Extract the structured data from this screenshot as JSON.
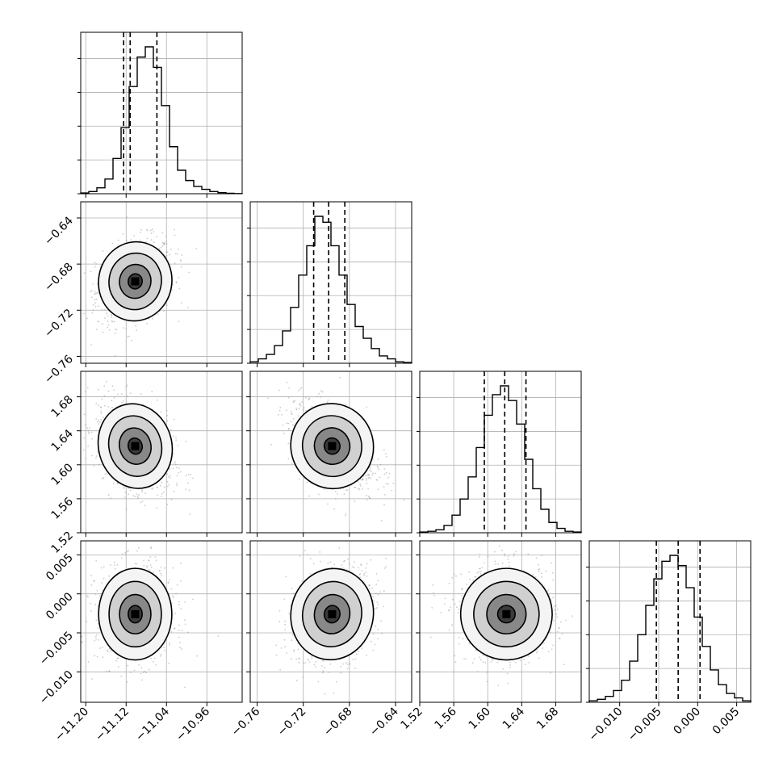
{
  "chart_data": {
    "type": "corner",
    "parameters": [
      {
        "range": [
          -11.21,
          -10.89
        ],
        "ticks": [
          -11.2,
          -11.12,
          -11.04,
          -10.96
        ],
        "tick_labels": [
          "−11.20",
          "−11.12",
          "−11.04",
          "−10.96"
        ],
        "quantiles": [
          -11.125,
          -11.112,
          -11.059
        ],
        "hist_values": [
          0.5,
          1.5,
          4,
          10,
          24,
          45,
          73,
          93,
          100,
          86,
          60,
          32,
          16,
          9,
          5,
          3,
          1.5,
          0.7,
          0.3,
          0.1
        ],
        "peak": [
          -11.102,
          0.04
        ]
      },
      {
        "range": [
          -0.766,
          -0.626
        ],
        "ticks": [
          -0.76,
          -0.72,
          -0.68,
          -0.64
        ],
        "tick_labels": [
          "−0.76",
          "−0.72",
          "−0.68",
          "−0.64"
        ],
        "quantiles": [
          -0.711,
          -0.698,
          -0.684
        ],
        "hist_values": [
          1,
          3,
          6,
          12,
          22,
          38,
          60,
          80,
          100,
          96,
          80,
          60,
          40,
          25,
          17,
          10,
          5,
          3,
          1,
          0.5
        ],
        "peak": [
          -0.695,
          0.032
        ]
      },
      {
        "range": [
          1.52,
          1.71
        ],
        "ticks": [
          1.52,
          1.56,
          1.6,
          1.64,
          1.68
        ],
        "tick_labels": [
          "1.52",
          "1.56",
          "1.60",
          "1.64",
          "1.68"
        ],
        "quantiles": [
          1.596,
          1.62,
          1.645
        ],
        "hist_values": [
          0.5,
          1,
          2,
          5,
          12,
          23,
          38,
          58,
          80,
          94,
          100,
          90,
          74,
          50,
          30,
          16,
          7,
          3,
          1,
          0.5
        ],
        "peak": [
          1.622,
          0.0
        ]
      },
      {
        "range": [
          -0.0139,
          0.0068
        ],
        "ticks": [
          -0.01,
          -0.005,
          0.0,
          0.005
        ],
        "tick_labels": [
          "−0.010",
          "−0.005",
          "0.000",
          "0.005"
        ],
        "quantiles": [
          -0.0053,
          -0.0025,
          0.0003
        ],
        "hist_values": [
          1,
          2,
          4,
          8,
          15,
          28,
          46,
          66,
          84,
          96,
          100,
          93,
          78,
          58,
          38,
          22,
          12,
          6,
          3,
          1
        ],
        "peak": [
          -0.0026,
          0.0
        ]
      }
    ]
  }
}
